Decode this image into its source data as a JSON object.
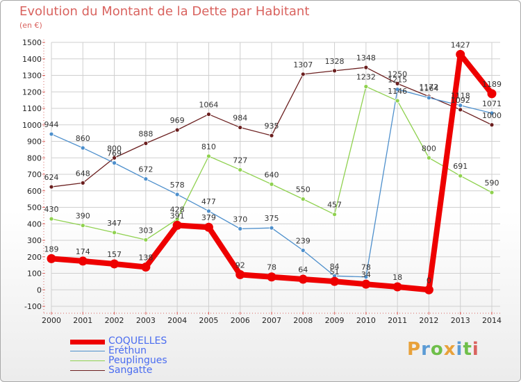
{
  "title": "Evolution du Montant de la Dette par Habitant",
  "unit": "(en €)",
  "logo": {
    "text": "Proxiti",
    "colors": [
      "#e8a13a",
      "#5b9bd5",
      "#6fbf4a",
      "#e8a13a",
      "#5b9bd5",
      "#6fbf4a",
      "#d9635f"
    ]
  },
  "chart_data": {
    "type": "line",
    "title": "Evolution du Montant de la Dette par Habitant",
    "ylabel": "(en €)",
    "xlabel": "",
    "x": [
      "2000",
      "2001",
      "2002",
      "2003",
      "2004",
      "2005",
      "2006",
      "2007",
      "2008",
      "2009",
      "2010",
      "2011",
      "2012",
      "2013",
      "2014"
    ],
    "ylim": [
      -100,
      1500
    ],
    "yticks": [
      "-100",
      "0",
      "100",
      "200",
      "300",
      "400",
      "500",
      "600",
      "700",
      "800",
      "900",
      "1000",
      "1100",
      "1200",
      "1300",
      "1400",
      "1500"
    ],
    "grid": true,
    "legend_position": "bottom-left",
    "series": [
      {
        "name": "Sangatte",
        "color": "#6b1f1f",
        "values": [
          624,
          648,
          800,
          888,
          969,
          1064,
          984,
          935,
          1307,
          1328,
          1348,
          1250,
          1172,
          1092,
          1000
        ],
        "labels": [
          "624",
          "648",
          "800",
          "888",
          "969",
          "1064",
          "984",
          "935",
          "1307",
          "1328",
          "1348",
          "1250",
          "1172",
          "1092",
          "1000"
        ]
      },
      {
        "name": "Eréthun",
        "color": "#4d8fcc",
        "values": [
          944,
          860,
          769,
          672,
          578,
          477,
          370,
          375,
          239,
          84,
          78,
          1215,
          1164,
          1118,
          1071
        ],
        "labels": [
          "944",
          "860",
          "769",
          "672",
          "578",
          "477",
          "370",
          "375",
          "239",
          "84",
          "78",
          "1215",
          "1164",
          "1118",
          "1071"
        ]
      },
      {
        "name": "Peuplingues",
        "color": "#8fd14f",
        "values": [
          430,
          390,
          347,
          303,
          428,
          810,
          727,
          640,
          550,
          457,
          1232,
          1146,
          800,
          691,
          590
        ],
        "labels": [
          "430",
          "390",
          "347",
          "303",
          "428",
          "810",
          "727",
          "640",
          "550",
          "457",
          "1232",
          "1146",
          "800",
          "691",
          "590"
        ]
      },
      {
        "name": "COQUELLES",
        "color": "#ee0000",
        "values": [
          189,
          174,
          157,
          138,
          391,
          379,
          92,
          78,
          64,
          51,
          34,
          18,
          0,
          1427,
          1189
        ],
        "labels": [
          "189",
          "174",
          "157",
          "138",
          "391",
          "379",
          "92",
          "78",
          "64",
          "51",
          "34",
          "18",
          "0",
          "1427",
          "1189"
        ]
      }
    ],
    "legend": [
      {
        "name": "COQUELLES",
        "color": "#ee0000",
        "text_color": "#4a6cf0"
      },
      {
        "name": "Eréthun",
        "color": "#4d8fcc",
        "text_color": "#4a6cf0"
      },
      {
        "name": "Peuplingues",
        "color": "#8fd14f",
        "text_color": "#4a6cf0"
      },
      {
        "name": "Sangatte",
        "color": "#6b1f1f",
        "text_color": "#4a6cf0"
      }
    ]
  }
}
